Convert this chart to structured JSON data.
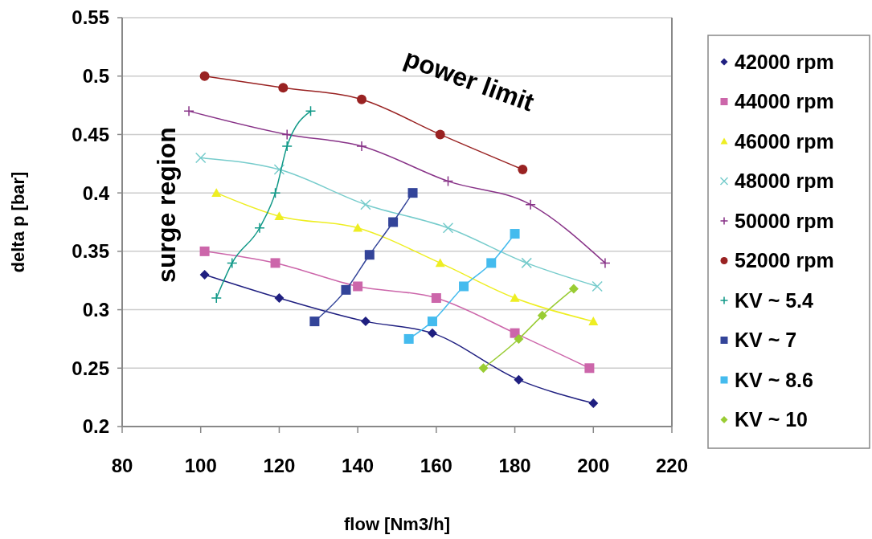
{
  "chart_data": {
    "type": "line",
    "xlabel": "flow [Nm3/h]",
    "ylabel": "delta p [bar]",
    "xlim": [
      80,
      220
    ],
    "xticks": [
      80,
      100,
      120,
      140,
      160,
      180,
      200,
      220
    ],
    "ylim": [
      0.2,
      0.55
    ],
    "yticks": [
      0.2,
      0.25,
      0.3,
      0.35,
      0.4,
      0.45,
      0.5,
      0.55
    ],
    "grid": "y",
    "legend": "right",
    "annotations": [
      "power limit",
      "surge region"
    ],
    "series": [
      {
        "name": "42000 rpm",
        "color": "#1f1f80",
        "marker": "diamond",
        "x": [
          101,
          120,
          142,
          159,
          181,
          200
        ],
        "values": [
          0.33,
          0.31,
          0.29,
          0.28,
          0.24,
          0.22
        ]
      },
      {
        "name": "44000 rpm",
        "color": "#cc66aa",
        "marker": "square",
        "x": [
          101,
          119,
          140,
          160,
          180,
          199
        ],
        "values": [
          0.35,
          0.34,
          0.32,
          0.31,
          0.28,
          0.25
        ]
      },
      {
        "name": "46000 rpm",
        "color": "#eeee22",
        "marker": "triangle",
        "x": [
          104,
          120,
          140,
          161,
          180,
          200
        ],
        "values": [
          0.4,
          0.38,
          0.37,
          0.34,
          0.31,
          0.29
        ]
      },
      {
        "name": "48000 rpm",
        "color": "#77cccc",
        "marker": "x",
        "x": [
          100,
          120,
          142,
          163,
          183,
          201
        ],
        "values": [
          0.43,
          0.42,
          0.39,
          0.37,
          0.34,
          0.32
        ]
      },
      {
        "name": "50000 rpm",
        "color": "#883388",
        "marker": "cross",
        "x": [
          97,
          122,
          141,
          163,
          184,
          203
        ],
        "values": [
          0.47,
          0.45,
          0.44,
          0.41,
          0.39,
          0.34
        ]
      },
      {
        "name": "52000 rpm",
        "color": "#992222",
        "marker": "circle",
        "x": [
          101,
          121,
          141,
          161,
          182
        ],
        "values": [
          0.5,
          0.49,
          0.48,
          0.45,
          0.42
        ]
      },
      {
        "name": "KV ~ 5.4",
        "color": "#119988",
        "marker": "cross",
        "x": [
          104,
          108,
          115,
          119,
          122,
          128
        ],
        "values": [
          0.31,
          0.34,
          0.37,
          0.4,
          0.44,
          0.47
        ]
      },
      {
        "name": "KV ~ 7",
        "color": "#334499",
        "marker": "square",
        "x": [
          129,
          137,
          143,
          149,
          154
        ],
        "values": [
          0.29,
          0.317,
          0.347,
          0.375,
          0.4
        ]
      },
      {
        "name": "KV ~ 8.6",
        "color": "#44bbee",
        "marker": "square",
        "x": [
          153,
          159,
          167,
          174,
          180
        ],
        "values": [
          0.275,
          0.29,
          0.32,
          0.34,
          0.365
        ]
      },
      {
        "name": "KV ~ 10",
        "color": "#99cc33",
        "marker": "diamond",
        "x": [
          172,
          181,
          187,
          195
        ],
        "values": [
          0.25,
          0.275,
          0.295,
          0.318
        ]
      }
    ]
  }
}
